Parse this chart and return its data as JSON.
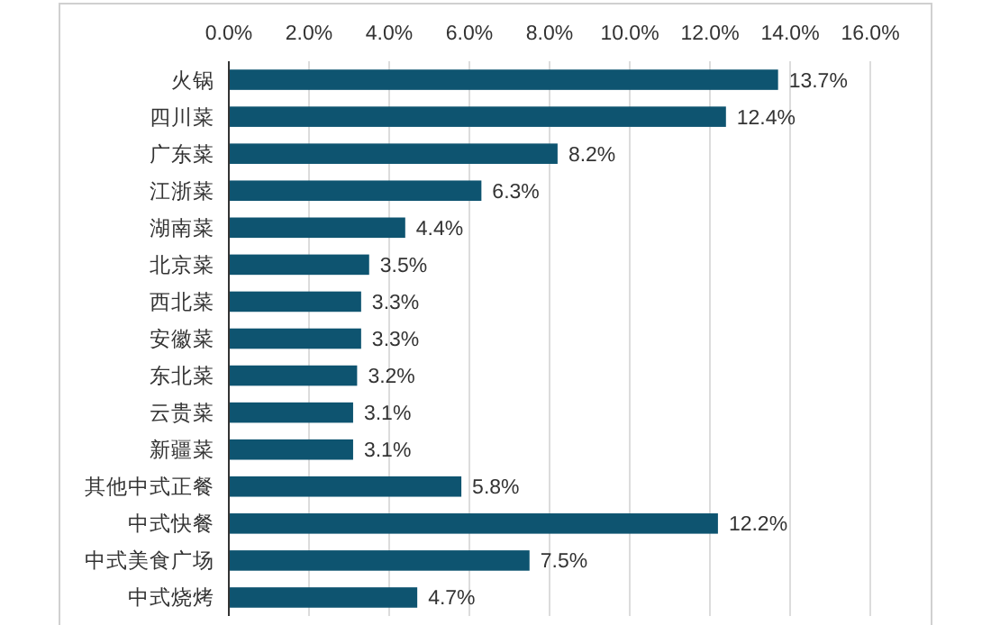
{
  "chart_data": {
    "type": "bar",
    "orientation": "horizontal",
    "categories": [
      "火锅",
      "四川菜",
      "广东菜",
      "江浙菜",
      "湖南菜",
      "北京菜",
      "西北菜",
      "安徽菜",
      "东北菜",
      "云贵菜",
      "新疆菜",
      "其他中式正餐",
      "中式快餐",
      "中式美食广场",
      "中式烧烤"
    ],
    "values": [
      13.7,
      12.4,
      8.2,
      6.3,
      4.4,
      3.5,
      3.3,
      3.3,
      3.2,
      3.1,
      3.1,
      5.8,
      12.2,
      7.5,
      4.7
    ],
    "value_labels": [
      "13.7%",
      "12.4%",
      "8.2%",
      "6.3%",
      "4.4%",
      "3.5%",
      "3.3%",
      "3.3%",
      "3.2%",
      "3.1%",
      "3.1%",
      "5.8%",
      "12.2%",
      "7.5%",
      "4.7%"
    ],
    "color": "#0e5470",
    "xlim": [
      0,
      16
    ],
    "xticks": [
      {
        "value": 0,
        "label": "0.0%"
      },
      {
        "value": 2,
        "label": "2.0%"
      },
      {
        "value": 4,
        "label": "4.0%"
      },
      {
        "value": 6,
        "label": "6.0%"
      },
      {
        "value": 8,
        "label": "8.0%"
      },
      {
        "value": 10,
        "label": "10.0%"
      },
      {
        "value": 12,
        "label": "12.0%"
      },
      {
        "value": 14,
        "label": "14.0%"
      },
      {
        "value": 16,
        "label": "16.0%"
      }
    ],
    "grid": "x"
  }
}
